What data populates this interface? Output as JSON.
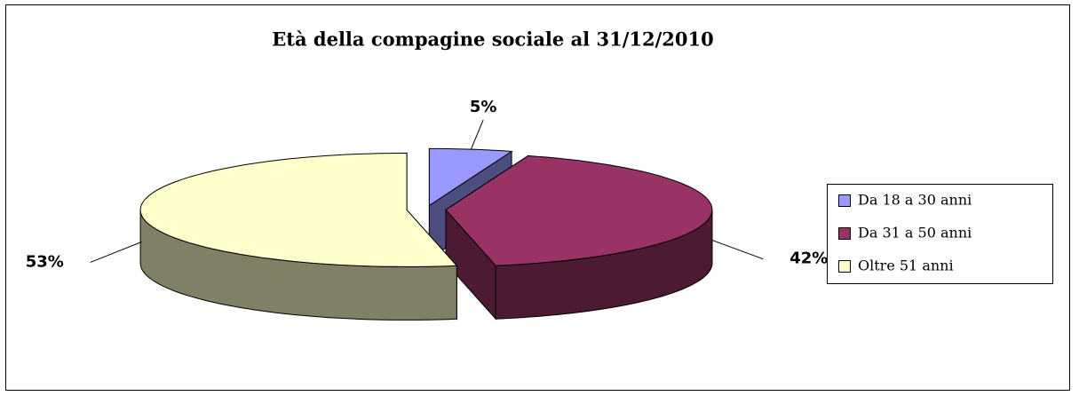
{
  "chart_data": {
    "type": "pie3d",
    "title": "Età della compagine sociale al 31/12/2010",
    "categories": [
      "Da 18 a 30 anni",
      "Da 31 a 50 anni",
      "Oltre 51 anni"
    ],
    "values": [
      5,
      42,
      53
    ],
    "value_labels": [
      "5%",
      "42%",
      "53%"
    ],
    "colors": [
      "#9999ff",
      "#993366",
      "#ffffcc"
    ],
    "legend": "right"
  }
}
